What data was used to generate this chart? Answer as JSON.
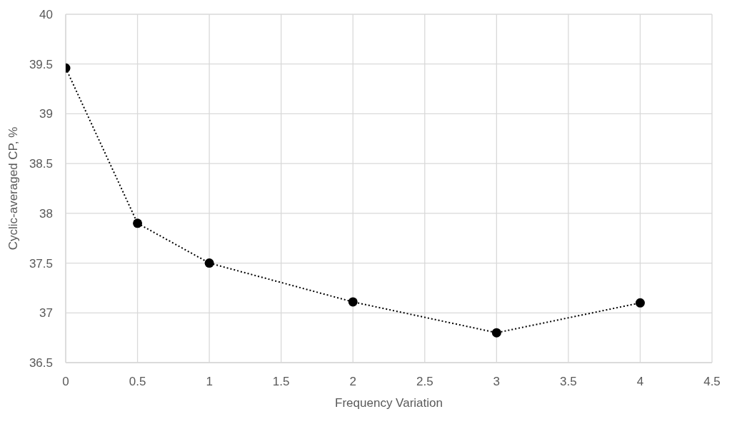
{
  "chart_data": {
    "type": "line",
    "xlabel": "Frequency Variation",
    "ylabel": "Cyclic-averaged CP, %",
    "x": [
      0,
      0.5,
      1,
      2,
      3,
      4
    ],
    "series": [
      {
        "color": "#000000",
        "values": [
          39.46,
          37.9,
          37.5,
          37.11,
          36.8,
          37.1
        ]
      }
    ],
    "xlim": [
      0,
      4.5
    ],
    "xticks": [
      0,
      0.5,
      1,
      1.5,
      2,
      2.5,
      3,
      3.5,
      4,
      4.5
    ],
    "ylim": [
      36.5,
      40
    ],
    "yticks": [
      36.5,
      37,
      37.5,
      38,
      38.5,
      39,
      39.5,
      40
    ],
    "grid": true,
    "legend": false,
    "marker": "circle",
    "line_style": "dotted"
  }
}
